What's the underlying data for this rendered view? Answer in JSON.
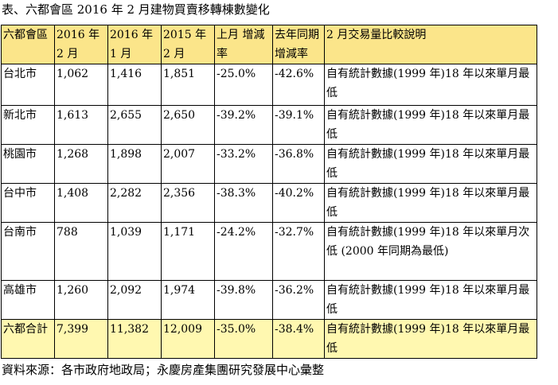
{
  "title": "表、六都會區 2016 年 2 月建物買賣移轉棟數變化",
  "headers": [
    "六都會區",
    "2016 年 2 月",
    "2016 年 1 月",
    "2015 年 2 月",
    "上月 增減率",
    "去年同期 增減率",
    "2 月交易量比較說明"
  ],
  "rows": [
    [
      "台北市",
      "1,062",
      "1,416",
      "1,851",
      "-25.0%",
      "-42.6%",
      "自有統計數據(1999 年)18 年以來單月最低"
    ],
    [
      "新北市",
      "1,613",
      "2,655",
      "2,650",
      "-39.2%",
      "-39.1%",
      "自有統計數據(1999 年)18 年以來單月最低"
    ],
    [
      "桃園市",
      "1,268",
      "1,898",
      "2,007",
      "-33.2%",
      "-36.8%",
      "自有統計數據(1999 年)18 年以來單月最低"
    ],
    [
      "台中市",
      "1,408",
      "2,282",
      "2,356",
      "-38.3%",
      "-40.2%",
      "自有統計數據(1999 年)18 年以來單月最低"
    ],
    [
      "台南市",
      "788",
      "1,039",
      "1,171",
      "-24.2%",
      "-32.7%",
      "自有統計數據(1999 年)18 年以來單月次低 (2000 年同期為最低)"
    ],
    [
      "高雄市",
      "1,260",
      "2,092",
      "1,974",
      "-39.8%",
      "-36.2%",
      "自有統計數據(1999 年)18 年以來單月最低"
    ]
  ],
  "total": [
    "六都合計",
    "7,399",
    "11,382",
    "12,009",
    "-35.0%",
    "-38.4%",
    "自有統計數據(1999 年)18 年以來單月最低"
  ],
  "source": "資料來源：各市政府地政局；永慶房產集團研究發展中心彙整",
  "colors": {
    "header_bg": "#fbe58a",
    "total_bg": "#fff8b0"
  }
}
